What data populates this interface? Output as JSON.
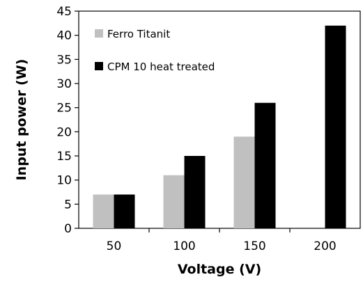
{
  "chart_data": {
    "type": "bar",
    "title": "",
    "xlabel": "Voltage (V)",
    "ylabel": "Input power (W)",
    "categories": [
      "50",
      "100",
      "150",
      "200"
    ],
    "ylim": [
      0,
      45
    ],
    "yticks": [
      0,
      5,
      10,
      15,
      20,
      25,
      30,
      35,
      40,
      45
    ],
    "grid": false,
    "legend_position": "top-left",
    "series": [
      {
        "name": "Ferro Titanit",
        "color": "#c0c0c0",
        "values": [
          7,
          11,
          19,
          null
        ]
      },
      {
        "name": "CPM 10 heat treated",
        "color": "#000000",
        "values": [
          7,
          15,
          26,
          42
        ]
      }
    ]
  }
}
